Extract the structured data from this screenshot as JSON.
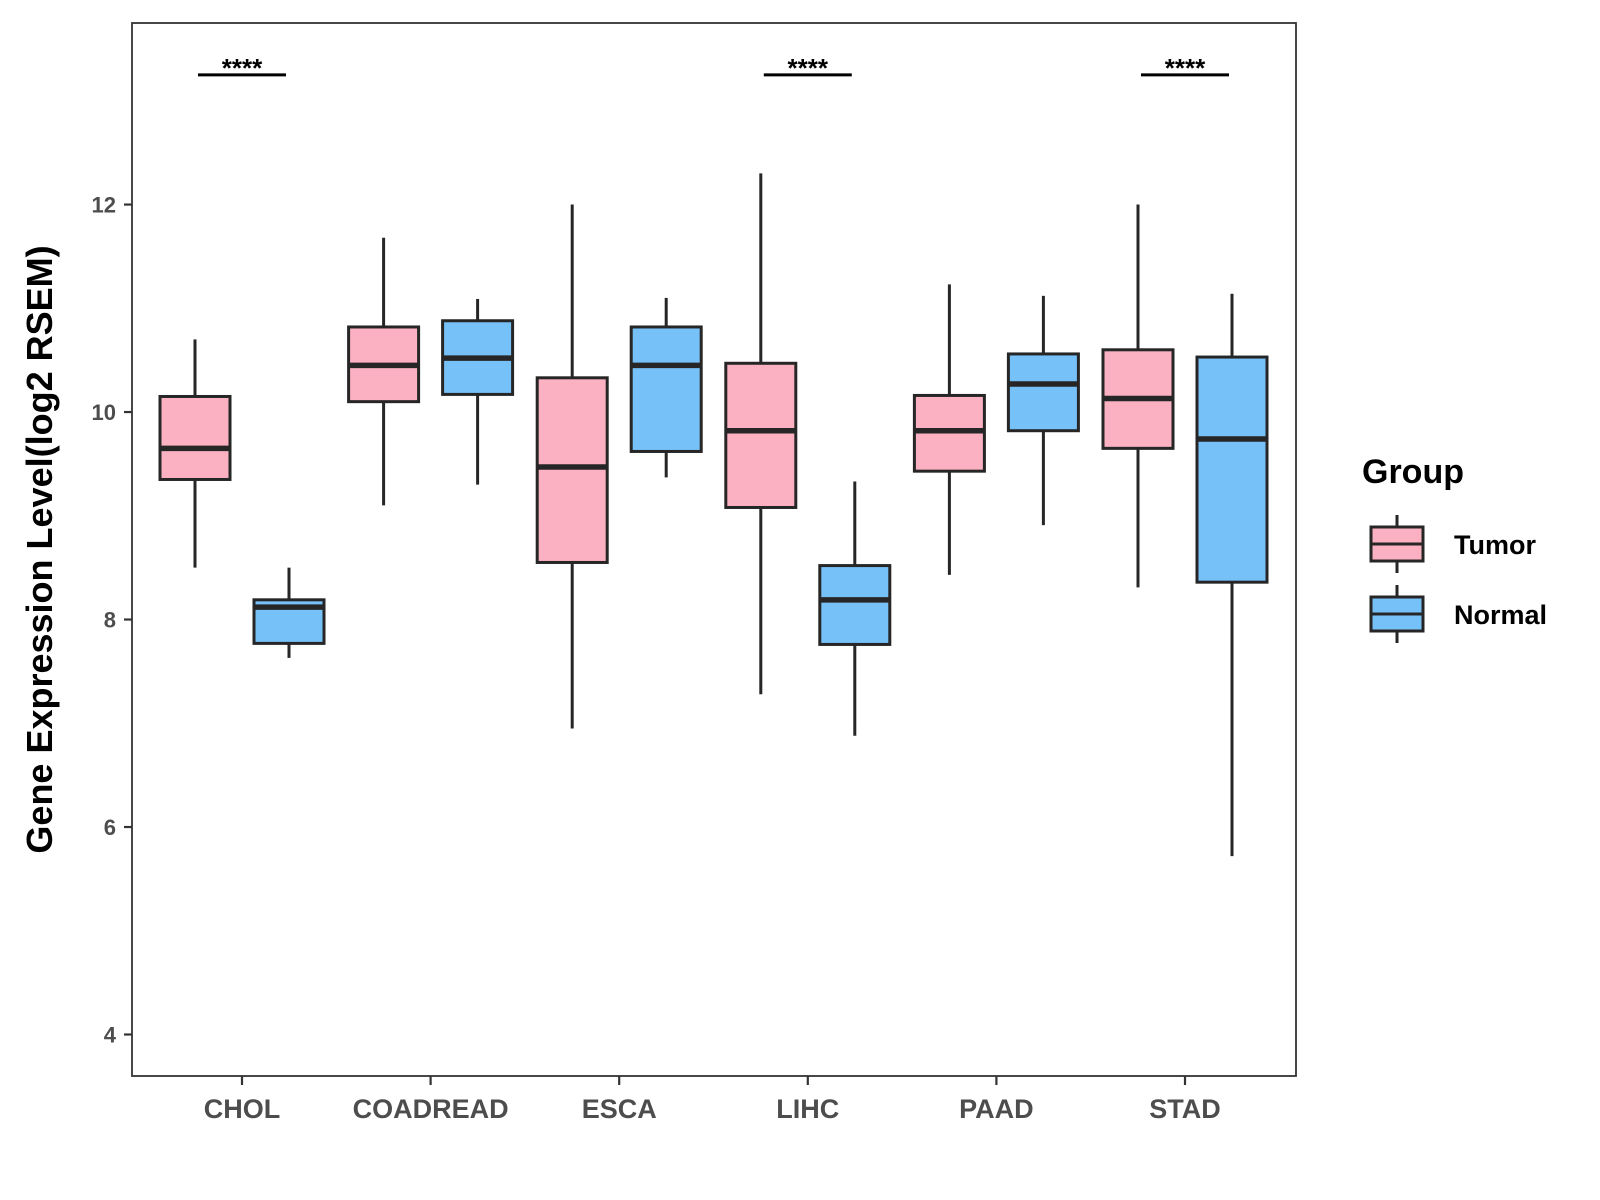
{
  "chart_data": {
    "type": "boxplot",
    "title": "",
    "xlabel": "",
    "ylabel": "Gene Expression Level(log2 RSEM)",
    "ylim": [
      3.6,
      13.75
    ],
    "yticks": [
      4,
      6,
      8,
      10,
      12
    ],
    "grid": false,
    "legend": {
      "title": "Group",
      "position": "right",
      "entries": [
        {
          "name": "Tumor",
          "color": "#FBB1C2"
        },
        {
          "name": "Normal",
          "color": "#76C1F8"
        }
      ]
    },
    "categories": [
      "CHOL",
      "COADREAD",
      "ESCA",
      "LIHC",
      "PAAD",
      "STAD"
    ],
    "series": [
      {
        "name": "Tumor",
        "color": "#FBB1C2",
        "boxes": [
          {
            "whisker_low": 8.5,
            "q1": 9.35,
            "median": 9.65,
            "q3": 10.15,
            "whisker_high": 10.7
          },
          {
            "whisker_low": 9.1,
            "q1": 10.1,
            "median": 10.45,
            "q3": 10.82,
            "whisker_high": 11.68
          },
          {
            "whisker_low": 6.95,
            "q1": 8.55,
            "median": 9.47,
            "q3": 10.33,
            "whisker_high": 12.0
          },
          {
            "whisker_low": 7.28,
            "q1": 9.08,
            "median": 9.82,
            "q3": 10.47,
            "whisker_high": 12.3
          },
          {
            "whisker_low": 8.43,
            "q1": 9.43,
            "median": 9.82,
            "q3": 10.16,
            "whisker_high": 11.23
          },
          {
            "whisker_low": 8.31,
            "q1": 9.65,
            "median": 10.13,
            "q3": 10.6,
            "whisker_high": 12.0
          }
        ]
      },
      {
        "name": "Normal",
        "color": "#76C1F8",
        "boxes": [
          {
            "whisker_low": 7.63,
            "q1": 7.77,
            "median": 8.12,
            "q3": 8.19,
            "whisker_high": 8.5
          },
          {
            "whisker_low": 9.3,
            "q1": 10.17,
            "median": 10.52,
            "q3": 10.88,
            "whisker_high": 11.09
          },
          {
            "whisker_low": 9.37,
            "q1": 9.62,
            "median": 10.45,
            "q3": 10.82,
            "whisker_high": 11.1
          },
          {
            "whisker_low": 6.88,
            "q1": 7.76,
            "median": 8.19,
            "q3": 8.52,
            "whisker_high": 9.33
          },
          {
            "whisker_low": 8.91,
            "q1": 9.82,
            "median": 10.27,
            "q3": 10.56,
            "whisker_high": 11.12
          },
          {
            "whisker_low": 5.72,
            "q1": 8.36,
            "median": 9.74,
            "q3": 10.53,
            "whisker_high": 11.14
          }
        ]
      }
    ],
    "annotations": [
      {
        "category": "CHOL",
        "label": "****",
        "y": 13.25
      },
      {
        "category": "LIHC",
        "label": "****",
        "y": 13.25
      },
      {
        "category": "STAD",
        "label": "****",
        "y": 13.25
      }
    ]
  }
}
